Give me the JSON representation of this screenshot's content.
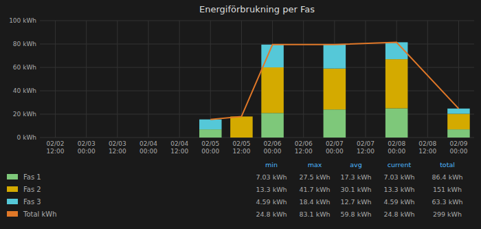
{
  "chart_data": {
    "type": "bar",
    "stacked": true,
    "grid": true,
    "title": "Energiförbrukning per Fas",
    "categories": [
      "02/02\n12:00",
      "02/03\n00:00",
      "02/03\n12:00",
      "02/04\n00:00",
      "02/04\n12:00",
      "02/05\n00:00",
      "02/05\n12:00",
      "02/06\n00:00",
      "02/06\n12:00",
      "02/07\n00:00",
      "02/07\n12:00",
      "02/08\n00:00",
      "02/08\n12:00",
      "02/09\n00:00"
    ],
    "series": [
      {
        "name": "Fas 1",
        "color": "#7ec87a",
        "values": [
          null,
          null,
          null,
          null,
          null,
          7.0,
          0.0,
          21.0,
          0.0,
          24.0,
          0.0,
          25.0,
          0.0,
          7.0
        ]
      },
      {
        "name": "Fas 2",
        "color": "#d4aa00",
        "values": [
          null,
          null,
          null,
          null,
          null,
          0.0,
          18.0,
          39.0,
          0.0,
          35.0,
          0.0,
          42.0,
          0.0,
          13.3
        ]
      },
      {
        "name": "Fas 3",
        "color": "#55c8d8",
        "values": [
          null,
          null,
          null,
          null,
          null,
          8.5,
          0.0,
          19.5,
          0.0,
          20.5,
          0.0,
          14.5,
          0.0,
          4.5
        ]
      },
      {
        "name": "Total kWh",
        "type": "line",
        "color": "#e07828",
        "x": [
          "02/05\n00:00",
          "02/05\n12:00",
          "02/06\n00:00",
          "02/07\n00:00",
          "02/08\n00:00",
          "02/09\n00:00"
        ],
        "values": [
          15.5,
          18.0,
          79.5,
          79.5,
          81.5,
          24.8
        ]
      }
    ],
    "ylim": [
      0,
      100
    ],
    "yticks": [
      {
        "value": 0,
        "label": "0 kWh"
      },
      {
        "value": 20,
        "label": "20 kWh"
      },
      {
        "value": 40,
        "label": "40 kWh"
      },
      {
        "value": 60,
        "label": "60 kWh"
      },
      {
        "value": 80,
        "label": "80 kWh"
      },
      {
        "value": 100,
        "label": "100 kWh"
      }
    ],
    "table": {
      "columns": [
        "min",
        "max",
        "avg",
        "current",
        "total"
      ],
      "rows": [
        [
          "7.03 kWh",
          "27.5 kWh",
          "17.3 kWh",
          "7.03 kWh",
          "86.4 kWh"
        ],
        [
          "13.3 kWh",
          "41.7 kWh",
          "30.1 kWh",
          "13.3 kWh",
          "151 kWh"
        ],
        [
          "4.59 kWh",
          "18.4 kWh",
          "12.7 kWh",
          "4.59 kWh",
          "63.3 kWh"
        ],
        [
          "24.8 kWh",
          "83.1 kWh",
          "59.8 kWh",
          "24.8 kWh",
          "299 kWh"
        ]
      ]
    }
  }
}
